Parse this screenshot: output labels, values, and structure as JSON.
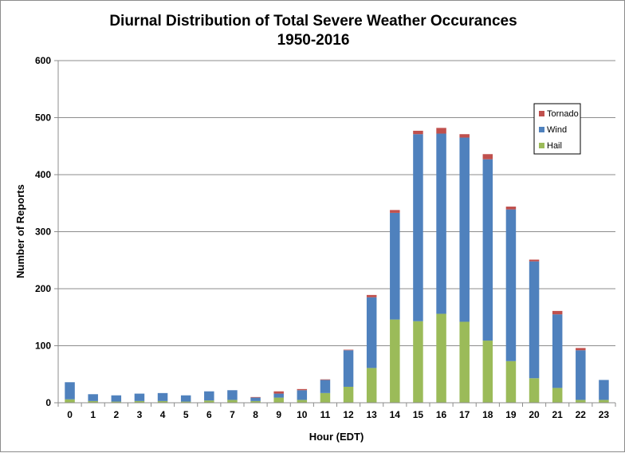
{
  "chart_data": {
    "type": "bar",
    "stacked": true,
    "title": "Diurnal Distribution of Total Severe Weather Occurances",
    "subtitle": "1950-2016",
    "xlabel": "Hour (EDT)",
    "ylabel": "Number of Reports",
    "ylim": [
      0,
      600
    ],
    "yticks": [
      "0",
      "100",
      "200",
      "300",
      "400",
      "500",
      "600"
    ],
    "grid": true,
    "legend_position": "right",
    "categories": [
      "0",
      "1",
      "2",
      "3",
      "4",
      "5",
      "6",
      "7",
      "8",
      "9",
      "10",
      "11",
      "12",
      "13",
      "14",
      "15",
      "16",
      "17",
      "18",
      "19",
      "20",
      "21",
      "22",
      "23"
    ],
    "series": [
      {
        "name": "Hail",
        "color": "#9bbb59",
        "values": [
          6,
          3,
          2,
          3,
          3,
          2,
          4,
          5,
          3,
          9,
          5,
          17,
          28,
          61,
          146,
          143,
          156,
          142,
          109,
          73,
          43,
          26,
          5,
          5
        ]
      },
      {
        "name": "Wind",
        "color": "#4f81bd",
        "values": [
          30,
          12,
          11,
          13,
          14,
          11,
          16,
          17,
          6,
          7,
          17,
          23,
          64,
          124,
          187,
          328,
          316,
          323,
          318,
          266,
          205,
          129,
          87,
          35
        ]
      },
      {
        "name": "Tornado",
        "color": "#c0504d",
        "values": [
          0,
          0,
          0,
          0,
          0,
          0,
          0,
          0,
          1,
          4,
          2,
          1,
          1,
          4,
          5,
          6,
          10,
          6,
          9,
          5,
          3,
          6,
          4,
          0
        ]
      }
    ],
    "legend_order": [
      "Tornado",
      "Wind",
      "Hail"
    ]
  }
}
